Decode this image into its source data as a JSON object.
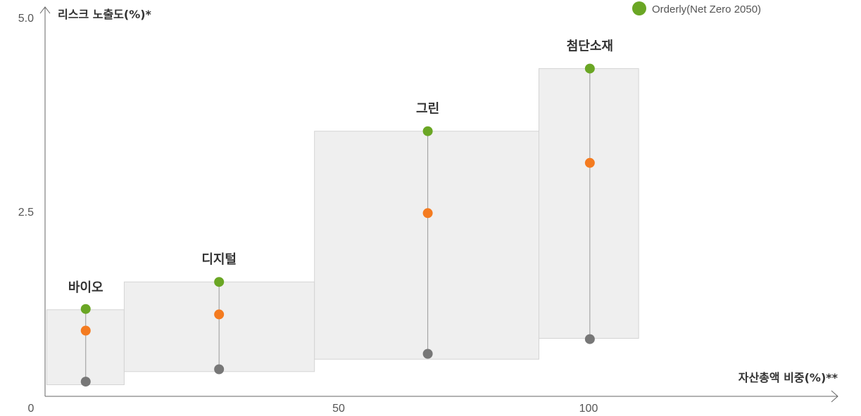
{
  "chart_data": {
    "type": "scatter",
    "subtype": "range-boxes-with-dots",
    "ylabel": "리스크 노출도(%)*",
    "xlabel": "자산총액 비중(%)**",
    "xlim": [
      0,
      145
    ],
    "ylim": [
      0,
      5.0
    ],
    "x_ticks": [
      "0",
      "50",
      "100"
    ],
    "y_ticks": [
      "2.5",
      "5.0"
    ],
    "legend": {
      "placement": "top-right",
      "entries": [
        {
          "label": "Orderly(Net Zero 2050)",
          "color": "#6aa624"
        }
      ]
    },
    "colors": {
      "high": "#6aa624",
      "mid": "#f47b20",
      "low": "#777777",
      "box_fill": "#efefef",
      "box_stroke": "#d4d4d4",
      "axis": "#666666",
      "range_line": "#999999"
    },
    "groups": [
      {
        "name": "바이오",
        "x_start": 0.3,
        "x_end": 14.6,
        "x_center": 7.5,
        "y_box": [
          0.15,
          1.12
        ],
        "high": 1.13,
        "mid": 0.85,
        "low": 0.19
      },
      {
        "name": "디지털",
        "x_start": 14.6,
        "x_end": 49.7,
        "x_center": 32.1,
        "y_box": [
          0.32,
          1.48
        ],
        "high": 1.48,
        "mid": 1.06,
        "low": 0.35
      },
      {
        "name": "그린",
        "x_start": 49.7,
        "x_end": 91.1,
        "x_center": 70.6,
        "y_box": [
          0.48,
          3.43
        ],
        "high": 3.43,
        "mid": 2.37,
        "low": 0.55
      },
      {
        "name": "첨단소재",
        "x_start": 91.1,
        "x_end": 109.5,
        "x_center": 100.5,
        "y_box": [
          0.75,
          4.24
        ],
        "high": 4.24,
        "mid": 3.02,
        "low": 0.74
      }
    ]
  }
}
